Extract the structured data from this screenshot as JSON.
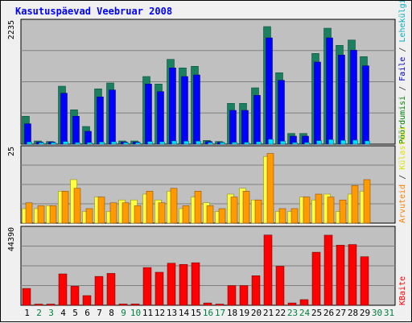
{
  "chart_data": {
    "type": "bar",
    "title": "Kasutuspäevad Veebruar 2008",
    "categories": [
      "1",
      "2",
      "3",
      "4",
      "5",
      "6",
      "7",
      "8",
      "9",
      "10",
      "11",
      "12",
      "13",
      "14",
      "15",
      "16",
      "17",
      "18",
      "19",
      "20",
      "21",
      "22",
      "23",
      "24",
      "25",
      "26",
      "27",
      "28",
      "29",
      "30",
      "31"
    ],
    "weekend_days": [
      "2",
      "3",
      "9",
      "10",
      "16",
      "17",
      "23",
      "24",
      "30",
      "31"
    ],
    "panels": [
      {
        "id": "top",
        "max_label": "2235",
        "ymax": 2235,
        "right_labels": [
          {
            "text": "Pöördumisi",
            "color": "#008000"
          },
          {
            "text": " / ",
            "color": "#333333"
          },
          {
            "text": "Faile",
            "color": "#0000c0"
          },
          {
            "text": " / ",
            "color": "#333333"
          },
          {
            "text": "Lehekülgi",
            "color": "#00b0c0"
          }
        ],
        "series": [
          {
            "name": "Pöördumisi",
            "color": "#1a8060",
            "values": [
              520,
              60,
              50,
              1080,
              640,
              330,
              1030,
              1140,
              60,
              60,
              1260,
              1120,
              1580,
              1420,
              1450,
              70,
              50,
              760,
              760,
              1050,
              2190,
              1330,
              200,
              200,
              1690,
              2160,
              1840,
              1940,
              1630,
              0,
              0
            ]
          },
          {
            "name": "Faile",
            "color": "#0000ff",
            "values": [
              380,
              40,
              40,
              950,
              520,
              240,
              880,
              1010,
              40,
              40,
              1120,
              980,
              1420,
              1260,
              1290,
              50,
              35,
              630,
              630,
              910,
              1980,
              1190,
              150,
              150,
              1530,
              1980,
              1660,
              1750,
              1460,
              0,
              0
            ]
          },
          {
            "name": "Lehekülgi",
            "color": "#00e0ff",
            "values": [
              40,
              10,
              10,
              50,
              30,
              15,
              40,
              45,
              10,
              10,
              50,
              45,
              60,
              55,
              55,
              10,
              8,
              35,
              35,
              45,
              90,
              55,
              15,
              15,
              65,
              85,
              70,
              75,
              60,
              0,
              0
            ]
          }
        ]
      },
      {
        "id": "middle",
        "max_label": "25",
        "ymax": 25,
        "right_labels": [
          {
            "text": "Arvuteid",
            "color": "#ff8000"
          },
          {
            "text": " / ",
            "color": "#333333"
          },
          {
            "text": "Külastusi",
            "color": "#e0e000"
          }
        ],
        "series": [
          {
            "name": "Külastusi",
            "color": "#ffff40",
            "values": [
              5,
              5,
              6,
              11,
              15,
              4,
              9,
              4,
              8,
              8,
              10,
              8,
              11,
              5,
              9,
              7,
              4,
              10,
              12,
              8,
              23,
              4,
              4,
              9,
              8,
              10,
              4,
              10,
              11,
              0,
              0
            ]
          },
          {
            "name": "Arvuteid",
            "color": "#ff9a00",
            "values": [
              7,
              6,
              6,
              11,
              12,
              5,
              9,
              7,
              7,
              6,
              11,
              7,
              12,
              6,
              11,
              6,
              5,
              9,
              11,
              8,
              24,
              5,
              5,
              9,
              10,
              9,
              8,
              13,
              15,
              0,
              0
            ]
          }
        ]
      },
      {
        "id": "bottom",
        "max_label": "44390",
        "ymax": 44390,
        "right_labels": [
          {
            "text": "KBaite",
            "color": "#ff0000"
          }
        ],
        "series": [
          {
            "name": "KBaite",
            "color": "#ff0000",
            "values": [
              10100,
              700,
              700,
              18800,
              11400,
              5800,
              17300,
              19100,
              800,
              800,
              22600,
              19800,
              25200,
              24500,
              25500,
              1400,
              700,
              11800,
              11800,
              17700,
              42100,
              23400,
              1400,
              3400,
              31800,
              42000,
              36000,
              36400,
              29100,
              0,
              0
            ]
          }
        ]
      }
    ],
    "grid": true,
    "legend": "right-vertical"
  },
  "colors": {
    "plot_bg": "#c0c0c0",
    "frame_bg": "#f0f0f0",
    "title": "#0000ff",
    "weekday": "#000000",
    "weekend": "#008040",
    "grid": "#808080"
  }
}
